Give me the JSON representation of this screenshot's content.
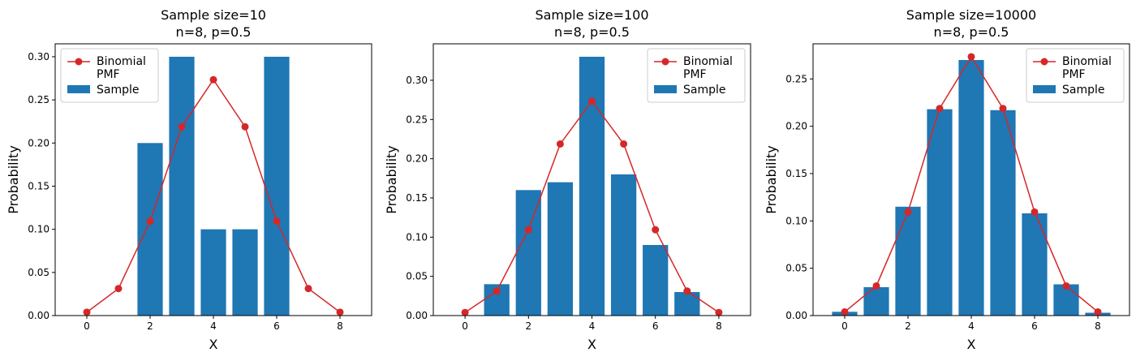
{
  "chart_data": [
    {
      "type": "bar",
      "title": "Sample size=10",
      "subtitle": "n=8, p=0.5",
      "xlabel": "X",
      "ylabel": "Probability",
      "xlim": [
        -1,
        9
      ],
      "ylim": [
        0,
        0.315
      ],
      "xticks": [
        0,
        2,
        4,
        6,
        8
      ],
      "yticks": [
        0.0,
        0.05,
        0.1,
        0.15,
        0.2,
        0.25,
        0.3
      ],
      "ytick_labels": [
        "0.00",
        "0.05",
        "0.10",
        "0.15",
        "0.20",
        "0.25",
        "0.30"
      ],
      "legend": {
        "placement": "top-left",
        "line_label": "Binomial\nPMF",
        "bar_label": "Sample"
      },
      "bars": {
        "name": "Sample",
        "x": [
          2,
          3,
          4,
          5,
          6
        ],
        "values": [
          0.2,
          0.3,
          0.1,
          0.1,
          0.3
        ],
        "color": "#1f77b4"
      },
      "line": {
        "name": "Binomial PMF",
        "x": [
          0,
          1,
          2,
          3,
          4,
          5,
          6,
          7,
          8
        ],
        "values": [
          0.0039,
          0.0313,
          0.1094,
          0.2188,
          0.2734,
          0.2188,
          0.1094,
          0.0313,
          0.0039
        ],
        "color": "#d62728"
      }
    },
    {
      "type": "bar",
      "title": "Sample size=100",
      "subtitle": "n=8, p=0.5",
      "xlabel": "X",
      "ylabel": "Probability",
      "xlim": [
        -1,
        9
      ],
      "ylim": [
        0,
        0.3465
      ],
      "xticks": [
        0,
        2,
        4,
        6,
        8
      ],
      "yticks": [
        0.0,
        0.05,
        0.1,
        0.15,
        0.2,
        0.25,
        0.3
      ],
      "ytick_labels": [
        "0.00",
        "0.05",
        "0.10",
        "0.15",
        "0.20",
        "0.25",
        "0.30"
      ],
      "legend": {
        "placement": "top-right",
        "line_label": "Binomial\nPMF",
        "bar_label": "Sample"
      },
      "bars": {
        "name": "Sample",
        "x": [
          1,
          2,
          3,
          4,
          5,
          6,
          7
        ],
        "values": [
          0.04,
          0.16,
          0.17,
          0.33,
          0.18,
          0.09,
          0.03
        ],
        "color": "#1f77b4"
      },
      "line": {
        "name": "Binomial PMF",
        "x": [
          0,
          1,
          2,
          3,
          4,
          5,
          6,
          7,
          8
        ],
        "values": [
          0.0039,
          0.0313,
          0.1094,
          0.2188,
          0.2734,
          0.2188,
          0.1094,
          0.0313,
          0.0039
        ],
        "color": "#d62728"
      }
    },
    {
      "type": "bar",
      "title": "Sample size=10000",
      "subtitle": "n=8, p=0.5",
      "xlabel": "X",
      "ylabel": "Probability",
      "xlim": [
        -1,
        9
      ],
      "ylim": [
        0,
        0.2871
      ],
      "xticks": [
        0,
        2,
        4,
        6,
        8
      ],
      "yticks": [
        0.0,
        0.05,
        0.1,
        0.15,
        0.2,
        0.25
      ],
      "ytick_labels": [
        "0.00",
        "0.05",
        "0.10",
        "0.15",
        "0.20",
        "0.25"
      ],
      "legend": {
        "placement": "top-right",
        "line_label": "Binomial\nPMF",
        "bar_label": "Sample"
      },
      "bars": {
        "name": "Sample",
        "x": [
          0,
          1,
          2,
          3,
          4,
          5,
          6,
          7,
          8
        ],
        "values": [
          0.004,
          0.03,
          0.115,
          0.218,
          0.27,
          0.217,
          0.108,
          0.033,
          0.003
        ],
        "color": "#1f77b4"
      },
      "line": {
        "name": "Binomial PMF",
        "x": [
          0,
          1,
          2,
          3,
          4,
          5,
          6,
          7,
          8
        ],
        "values": [
          0.0039,
          0.0313,
          0.1094,
          0.2188,
          0.2734,
          0.2188,
          0.1094,
          0.0313,
          0.0039
        ],
        "color": "#d62728"
      }
    }
  ]
}
